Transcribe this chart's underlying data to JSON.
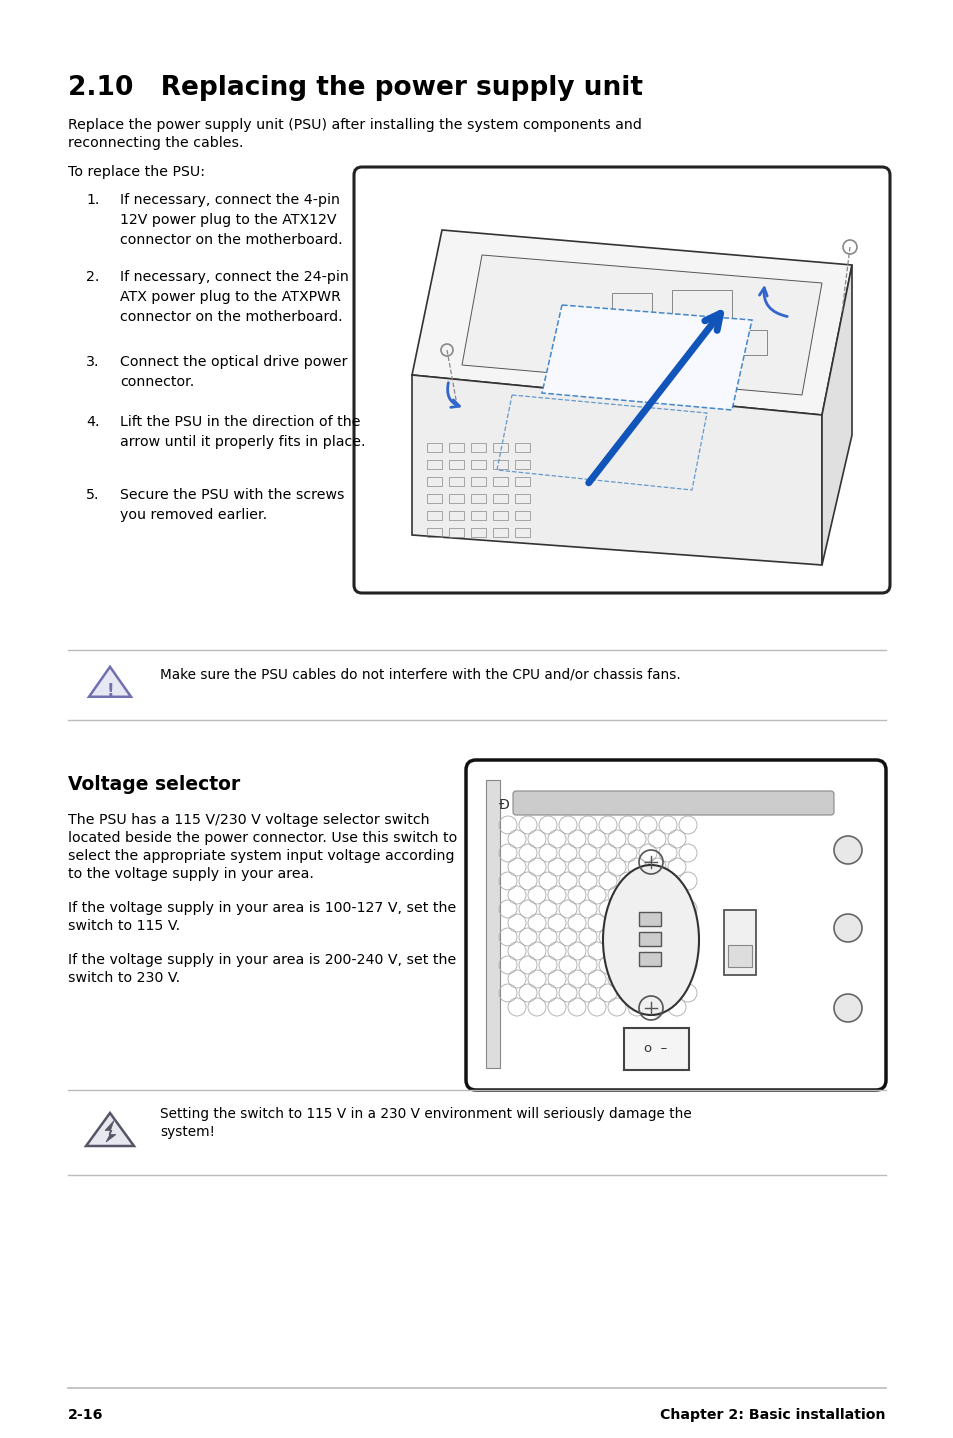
{
  "bg_color": "#ffffff",
  "title": "2.10   Replacing the power supply unit",
  "title_fontsize": 19,
  "body_fontsize": 10.2,
  "small_fontsize": 9.8,
  "section2_title": "Voltage selector",
  "section2_title_fontsize": 13.5,
  "footer_left": "2-16",
  "footer_right": "Chapter 2: Basic installation",
  "para1_line1": "Replace the power supply unit (PSU) after installing the system components and",
  "para1_line2": "reconnecting the cables.",
  "para2": "To replace the PSU:",
  "steps": [
    "If necessary, connect the 4-pin\n12V power plug to the ATX12V\nconnector on the motherboard.",
    "If necessary, connect the 24-pin\nATX power plug to the ATXPWR\nconnector on the motherboard.",
    "Connect the optical drive power\nconnector.",
    "Lift the PSU in the direction of the\narrow until it properly fits in place.",
    "Secure the PSU with the screws\nyou removed earlier."
  ],
  "warning1": "Make sure the PSU cables do not interfere with the CPU and/or chassis fans.",
  "warning2_line1": "Setting the switch to 115 V in a 230 V environment will seriously damage the",
  "warning2_line2": "system!",
  "vs_para1_line1": "The PSU has a 115 V/230 V voltage selector switch",
  "vs_para1_line2": "located beside the power connector. Use this switch to",
  "vs_para1_line3": "select the appropriate system input voltage according",
  "vs_para1_line4": "to the voltage supply in your area.",
  "vs_para2_line1": "If the voltage supply in your area is 100-127 V, set the",
  "vs_para2_line2": "switch to 115 V.",
  "vs_para3_line1": "If the voltage supply in your area is 200-240 V, set the",
  "vs_para3_line2": "switch to 230 V.",
  "warn_tri_color": "#7070b0",
  "warn_tri_fill": "#e8e8f4"
}
